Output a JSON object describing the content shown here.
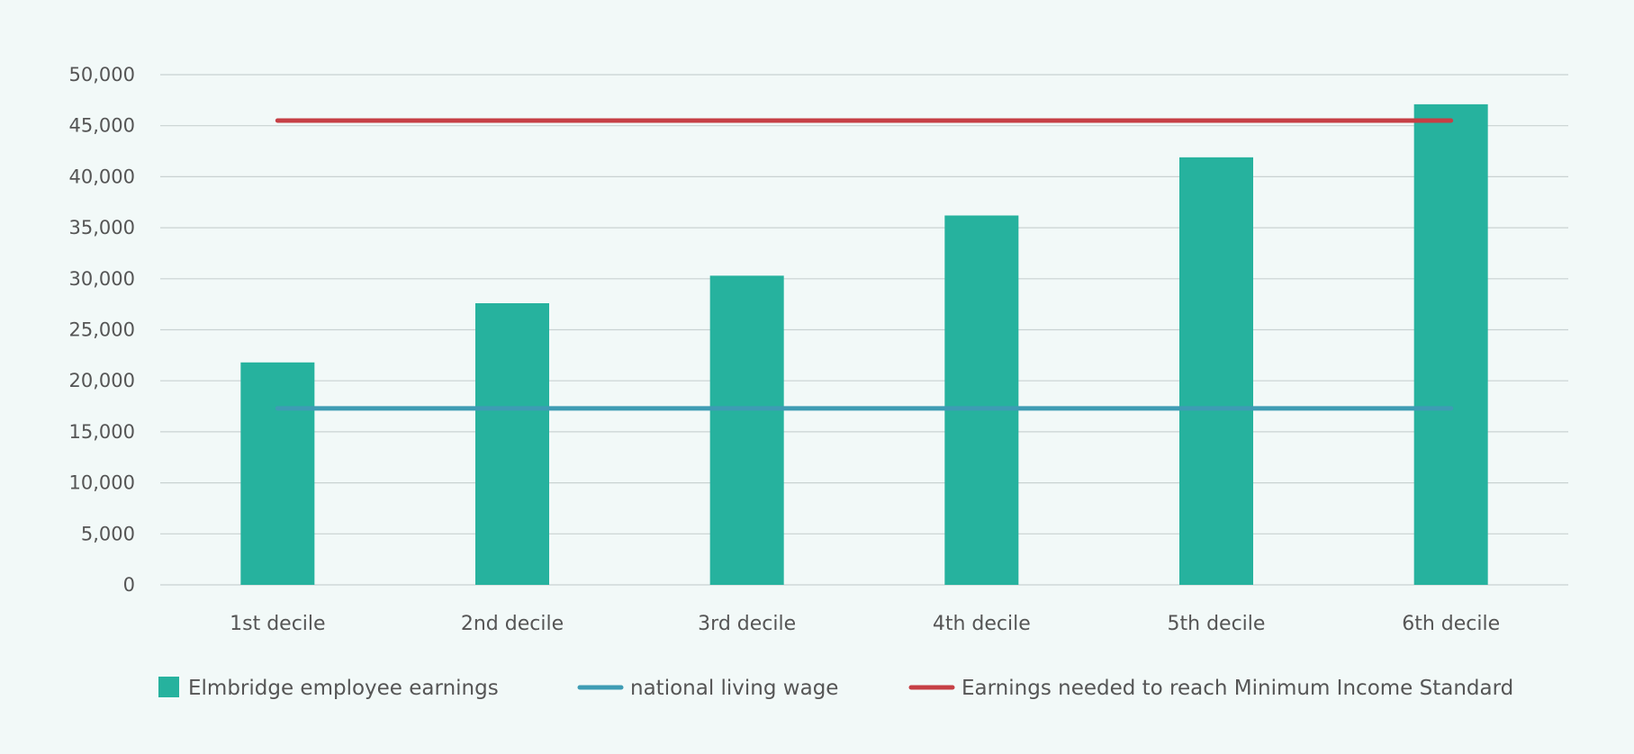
{
  "chart_data": {
    "type": "bar",
    "title": "",
    "xlabel": "",
    "ylabel": "",
    "categories": [
      "1st decile",
      "2nd decile",
      "3rd decile",
      "4th decile",
      "5th decile",
      "6th decile"
    ],
    "ylim": [
      0,
      50000
    ],
    "yticks": [
      0,
      5000,
      10000,
      15000,
      20000,
      25000,
      30000,
      35000,
      40000,
      45000,
      50000
    ],
    "ytick_labels": [
      "0",
      "5,000",
      "10,000",
      "15,000",
      "20,000",
      "25,000",
      "30,000",
      "35,000",
      "40,000",
      "45,000",
      "50,000"
    ],
    "grid": true,
    "legend_position": "bottom",
    "series": [
      {
        "name": "Elmbridge employee earnings",
        "kind": "bar",
        "color": "#26b29e",
        "values": [
          21800,
          27600,
          30300,
          36200,
          41900,
          47100
        ]
      },
      {
        "name": "national living wage",
        "kind": "line",
        "color": "#3e9cb4",
        "values": [
          17300,
          17300,
          17300,
          17300,
          17300,
          17300
        ]
      },
      {
        "name": "Earnings needed to reach Minimum Income Standard",
        "kind": "line",
        "color": "#c63f45",
        "values": [
          45500,
          45500,
          45500,
          45500,
          45500,
          45500
        ]
      }
    ],
    "colors": {
      "axis_text": "#555555",
      "grid": "#c9d2d2",
      "background": "#f2f9f8"
    }
  }
}
